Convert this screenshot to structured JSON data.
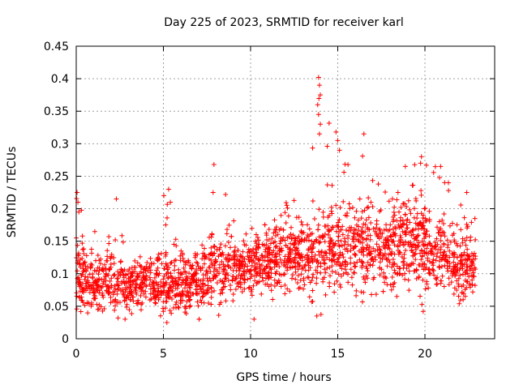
{
  "chart_data": {
    "type": "scatter",
    "title": "Day 225 of 2023, SRMTID for receiver karl",
    "xlabel": "GPS time / hours",
    "ylabel": "SRMTID / TECUs",
    "xlim": [
      0,
      24
    ],
    "ylim": [
      0,
      0.45
    ],
    "xticks": [
      0,
      5,
      10,
      15,
      20
    ],
    "xtick_labels": [
      "0",
      "5",
      "10",
      "15",
      "20"
    ],
    "yticks": [
      0,
      0.05,
      0.1,
      0.15,
      0.2,
      0.25,
      0.3,
      0.35,
      0.4,
      0.45
    ],
    "ytick_labels": [
      "0",
      "0.05",
      "0.1",
      "0.15",
      "0.2",
      "0.25",
      "0.3",
      "0.35",
      "0.4",
      "0.45"
    ],
    "grid": true,
    "marker": "+",
    "marker_color": "#ff0000",
    "series": [
      {
        "name": "SRMTID",
        "x_start": 0.0,
        "x_end": 22.9,
        "note": "dense scatter; per-hour envelope of typical values below",
        "hourly_profile": [
          {
            "hour": 0,
            "typical": 0.1,
            "spread": 0.035,
            "max": 0.225
          },
          {
            "hour": 1,
            "typical": 0.085,
            "spread": 0.03,
            "max": 0.17
          },
          {
            "hour": 2,
            "typical": 0.09,
            "spread": 0.03,
            "max": 0.215
          },
          {
            "hour": 3,
            "typical": 0.08,
            "spread": 0.025,
            "max": 0.13
          },
          {
            "hour": 4,
            "typical": 0.09,
            "spread": 0.025,
            "max": 0.13
          },
          {
            "hour": 5,
            "typical": 0.085,
            "spread": 0.03,
            "max": 0.23
          },
          {
            "hour": 6,
            "typical": 0.085,
            "spread": 0.03,
            "max": 0.135
          },
          {
            "hour": 7,
            "typical": 0.085,
            "spread": 0.03,
            "max": 0.13
          },
          {
            "hour": 8,
            "typical": 0.11,
            "spread": 0.035,
            "max": 0.268
          },
          {
            "hour": 9,
            "typical": 0.11,
            "spread": 0.03,
            "max": 0.19
          },
          {
            "hour": 10,
            "typical": 0.115,
            "spread": 0.03,
            "max": 0.19
          },
          {
            "hour": 11,
            "typical": 0.12,
            "spread": 0.035,
            "max": 0.2
          },
          {
            "hour": 12,
            "typical": 0.13,
            "spread": 0.035,
            "max": 0.24
          },
          {
            "hour": 13,
            "typical": 0.13,
            "spread": 0.035,
            "max": 0.2
          },
          {
            "hour": 14,
            "typical": 0.14,
            "spread": 0.045,
            "max": 0.402
          },
          {
            "hour": 15,
            "typical": 0.145,
            "spread": 0.045,
            "max": 0.32
          },
          {
            "hour": 16,
            "typical": 0.14,
            "spread": 0.04,
            "max": 0.315
          },
          {
            "hour": 17,
            "typical": 0.14,
            "spread": 0.045,
            "max": 0.25
          },
          {
            "hour": 18,
            "typical": 0.14,
            "spread": 0.045,
            "max": 0.26
          },
          {
            "hour": 19,
            "typical": 0.15,
            "spread": 0.045,
            "max": 0.27
          },
          {
            "hour": 20,
            "typical": 0.14,
            "spread": 0.045,
            "max": 0.28
          },
          {
            "hour": 21,
            "typical": 0.13,
            "spread": 0.04,
            "max": 0.265
          },
          {
            "hour": 22,
            "typical": 0.11,
            "spread": 0.035,
            "max": 0.225
          }
        ],
        "notable_points": [
          {
            "x": 0.05,
            "y": 0.225
          },
          {
            "x": 0.1,
            "y": 0.21
          },
          {
            "x": 0.15,
            "y": 0.195
          },
          {
            "x": 2.3,
            "y": 0.215
          },
          {
            "x": 5.3,
            "y": 0.23
          },
          {
            "x": 5.4,
            "y": 0.21
          },
          {
            "x": 7.9,
            "y": 0.268
          },
          {
            "x": 7.85,
            "y": 0.225
          },
          {
            "x": 13.9,
            "y": 0.402
          },
          {
            "x": 13.95,
            "y": 0.39
          },
          {
            "x": 14.0,
            "y": 0.375
          },
          {
            "x": 13.85,
            "y": 0.36
          },
          {
            "x": 13.9,
            "y": 0.345
          },
          {
            "x": 14.0,
            "y": 0.33
          },
          {
            "x": 13.95,
            "y": 0.315
          },
          {
            "x": 14.9,
            "y": 0.318
          },
          {
            "x": 15.0,
            "y": 0.305
          },
          {
            "x": 15.1,
            "y": 0.29
          },
          {
            "x": 16.5,
            "y": 0.315
          },
          {
            "x": 19.8,
            "y": 0.28
          },
          {
            "x": 19.75,
            "y": 0.27
          },
          {
            "x": 20.9,
            "y": 0.265
          },
          {
            "x": 22.4,
            "y": 0.225
          },
          {
            "x": 5.2,
            "y": 0.025
          },
          {
            "x": 2.8,
            "y": 0.03
          },
          {
            "x": 13.8,
            "y": 0.035
          },
          {
            "x": 10.2,
            "y": 0.03
          },
          {
            "x": 19.9,
            "y": 0.042
          }
        ]
      }
    ]
  }
}
